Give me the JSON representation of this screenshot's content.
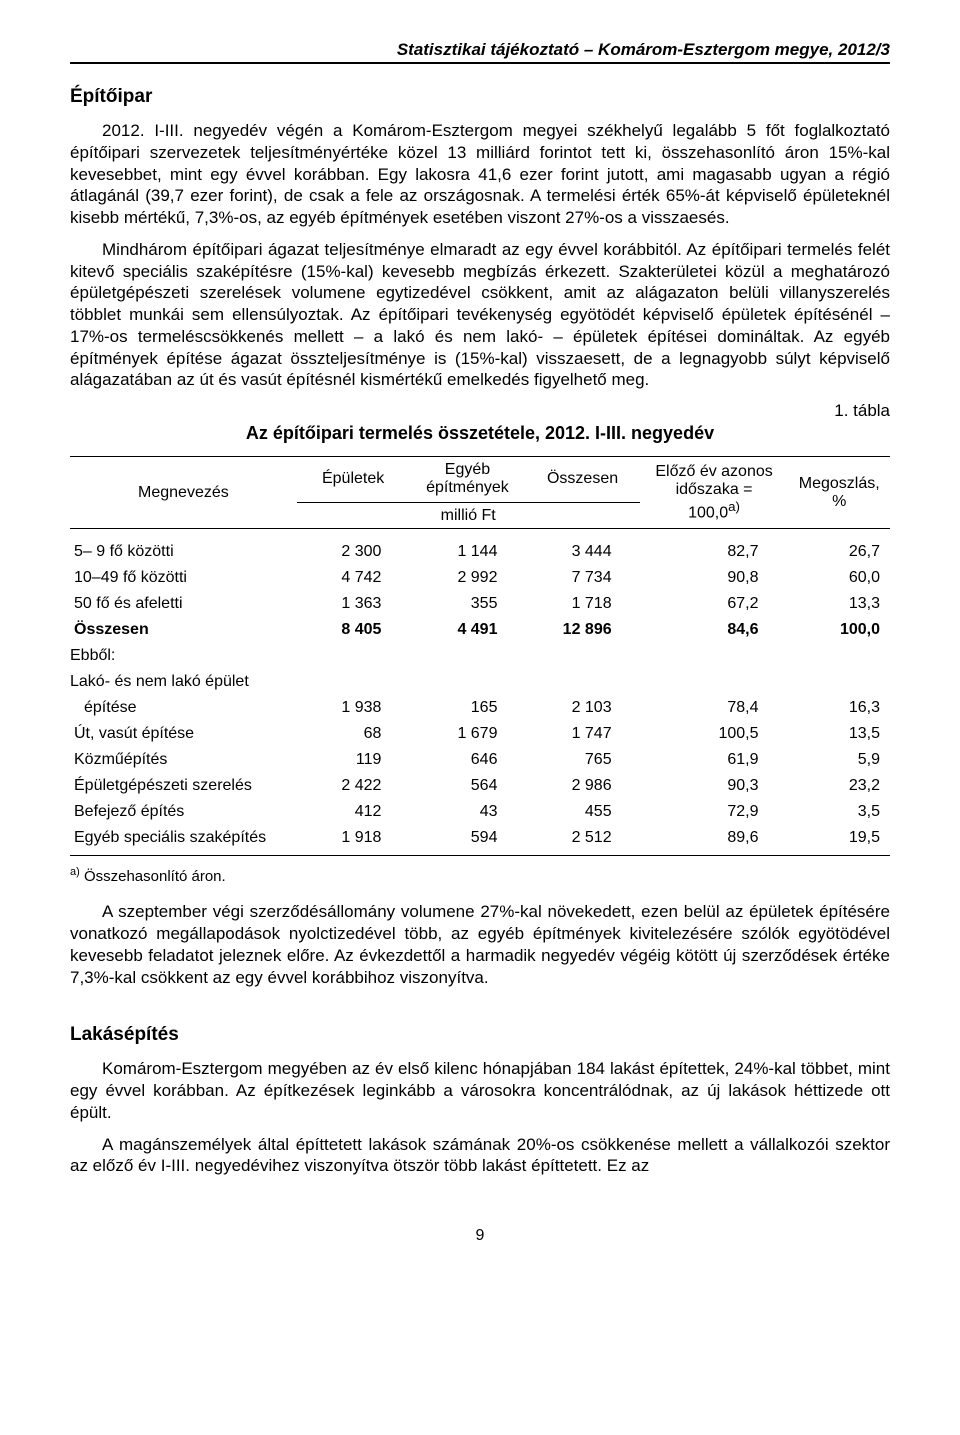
{
  "header": "Statisztikai tájékoztató – Komárom-Esztergom megye, 2012/3",
  "section1": {
    "title": "Építőipar",
    "para1": "2012. I-III. negyedév végén a Komárom-Esztergom megyei székhelyű legalább 5 főt foglalkoztató építőipari szervezetek teljesítményértéke közel 13 milliárd forintot tett ki, összehasonlító áron 15%-kal kevesebbet, mint egy évvel korábban. Egy lakosra 41,6 ezer forint jutott, ami magasabb ugyan a régió átlagánál (39,7 ezer forint), de csak a fele az országosnak. A termelési érték 65%-át képviselő épületeknél kisebb mértékű, 7,3%-os, az egyéb építmények esetében viszont 27%-os a visszaesés.",
    "para2": "Mindhárom építőipari ágazat teljesítménye elmaradt az egy évvel korábbitól. Az építőipari termelés felét kitevő speciális szaképítésre (15%-kal) kevesebb megbízás érkezett. Szakterületei közül a meghatározó épületgépészeti szerelések volumene egytizedével csökkent, amit az alágazaton belüli villanyszerelés többlet munkái sem ellensúlyoztak. Az építőipari tevékenység egyötödét képviselő épületek építésénél – 17%-os termeléscsökkenés mellett – a lakó és nem lakó- – épületek építései domináltak. Az egyéb építmények építése ágazat összteljesítménye is (15%-kal) visszaesett, de a legnagyobb súlyt képviselő alágazatában az út és vasút építésnél kismértékű emelkedés figyelhető meg."
  },
  "table": {
    "label": "1. tábla",
    "title": "Az építőipari termelés összetétele, 2012. I-III. negyedév",
    "headers": {
      "name": "Megnevezés",
      "col1": "Épületek",
      "col2_top": "Egyéb",
      "col2_bot": "építmények",
      "col3": "Összesen",
      "unit": "millió Ft",
      "col4_l1": "Előző év azonos",
      "col4_l2": "időszaka =",
      "col4_l3": "100,0",
      "col4_sup": "a)",
      "col5": "Megoszlás, %"
    },
    "rows": [
      {
        "name": "5– 9 fő közötti",
        "c1": "2 300",
        "c2": "1 144",
        "c3": "3 444",
        "c4": "82,7",
        "c5": "26,7"
      },
      {
        "name": "10–49 fő közötti",
        "c1": "4 742",
        "c2": "2 992",
        "c3": "7 734",
        "c4": "90,8",
        "c5": "60,0"
      },
      {
        "name": "50 fő és afeletti",
        "c1": "1 363",
        "c2": "355",
        "c3": "1 718",
        "c4": "67,2",
        "c5": "13,3"
      }
    ],
    "total": {
      "name": "Összesen",
      "c1": "8 405",
      "c2": "4 491",
      "c3": "12 896",
      "c4": "84,6",
      "c5": "100,0"
    },
    "subheader1": "Ebből:",
    "subheader2": "Lakó- és nem lakó épület",
    "subrows": [
      {
        "name": "építése",
        "c1": "1 938",
        "c2": "165",
        "c3": "2 103",
        "c4": "78,4",
        "c5": "16,3",
        "indent": true
      },
      {
        "name": "Út, vasút építése",
        "c1": "68",
        "c2": "1 679",
        "c3": "1 747",
        "c4": "100,5",
        "c5": "13,5"
      },
      {
        "name": "Közműépítés",
        "c1": "119",
        "c2": "646",
        "c3": "765",
        "c4": "61,9",
        "c5": "5,9"
      },
      {
        "name": "Épületgépészeti szerelés",
        "c1": "2 422",
        "c2": "564",
        "c3": "2 986",
        "c4": "90,3",
        "c5": "23,2"
      },
      {
        "name": "Befejező építés",
        "c1": "412",
        "c2": "43",
        "c3": "455",
        "c4": "72,9",
        "c5": "3,5"
      },
      {
        "name": "Egyéb speciális szaképítés",
        "c1": "1 918",
        "c2": "594",
        "c3": "2 512",
        "c4": "89,6",
        "c5": "19,5"
      }
    ],
    "footnote_sup": "a)",
    "footnote": " Összehasonlító áron."
  },
  "para3": "A szeptember végi szerződésállomány volumene 27%-kal növekedett, ezen belül az épületek építésére vonatkozó megállapodások nyolctizedével több, az egyéb építmények kivitelezésére szólók egyötödével kevesebb feladatot jeleznek előre. Az évkezdettől a harmadik negyedév végéig kötött új szerződések értéke 7,3%-kal csökkent az egy évvel korábbihoz viszonyítva.",
  "section2": {
    "title": "Lakásépítés",
    "para1": "Komárom-Esztergom megyében az év első kilenc hónapjában 184 lakást építettek, 24%-kal többet, mint egy évvel korábban. Az építkezések leginkább a városokra koncentrálódnak, az új lakások héttizede ott épült.",
    "para2": "A magánszemélyek által építtetett lakások számának 20%-os csökkenése mellett a vállalkozói szektor az előző év I-III. negyedévihez viszonyítva ötször több lakást építtetett. Ez az"
  },
  "page_number": "9"
}
